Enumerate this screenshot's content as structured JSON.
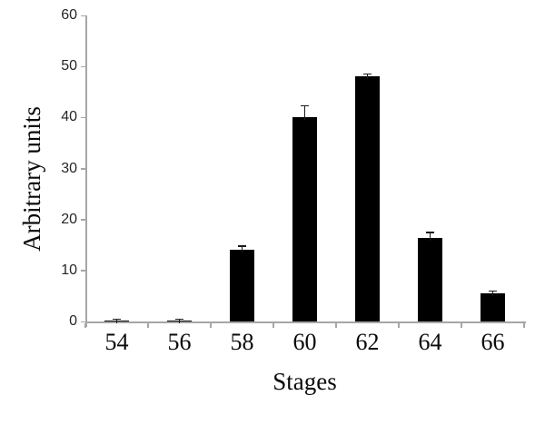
{
  "chart_data": {
    "type": "bar",
    "title": "",
    "xlabel": "Stages",
    "ylabel": "Arbitrary units",
    "categories": [
      "54",
      "56",
      "58",
      "60",
      "62",
      "64",
      "66"
    ],
    "values": [
      0.2,
      0.2,
      14,
      40,
      48,
      16.3,
      5.5
    ],
    "errors": [
      0.2,
      0.2,
      0.7,
      2.2,
      0.5,
      1.1,
      0.4
    ],
    "ylim": [
      0,
      60
    ],
    "yticks": [
      0,
      10,
      20,
      30,
      40,
      50,
      60
    ],
    "grid": false,
    "legend": "none",
    "bar_color": "#000000",
    "error_bar_color": "#1a1a1a",
    "axis_color": "#a6a6a6",
    "tick_label_color": "#262626",
    "background_color": "#ffffff"
  }
}
